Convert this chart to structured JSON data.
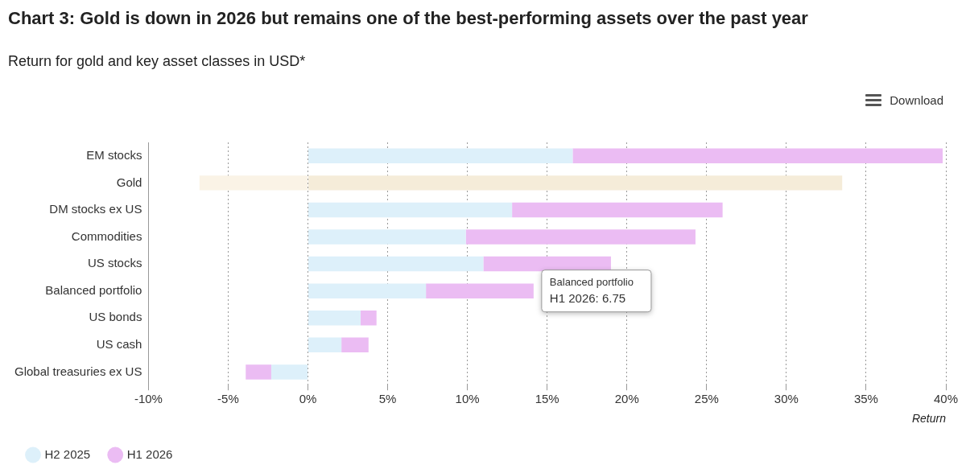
{
  "chart_data": {
    "type": "bar",
    "orientation": "horizontal",
    "stacked": true,
    "title": "Chart 3: Gold is down in 2026 but remains one of the best-performing assets over the past year",
    "subtitle": "Return for gold and key asset classes in USD*",
    "xlabel": "Return",
    "categories": [
      "EM stocks",
      "Gold",
      "DM stocks ex US",
      "Commodities",
      "US stocks",
      "Balanced portfolio",
      "US bonds",
      "US cash",
      "Global treasuries ex US"
    ],
    "series": [
      {
        "name": "H2 2025",
        "color": "#ddf0fa",
        "colors": [
          "#ddf0fa",
          "#f5ecd9",
          "#ddf0fa",
          "#ddf0fa",
          "#ddf0fa",
          "#ddf0fa",
          "#ddf0fa",
          "#ddf0fa",
          "#ddf0fa"
        ],
        "values": [
          16.6,
          33.5,
          12.8,
          9.9,
          11.0,
          7.4,
          3.3,
          2.1,
          -2.3
        ]
      },
      {
        "name": "H1 2026",
        "color": "#ebbcf3",
        "colors": [
          "#ebbcf3",
          "#faf3e6",
          "#ebbcf3",
          "#ebbcf3",
          "#ebbcf3",
          "#ebbcf3",
          "#ebbcf3",
          "#ebbcf3",
          "#ebbcf3"
        ],
        "values": [
          23.2,
          -6.8,
          13.2,
          14.4,
          8.0,
          6.75,
          1.0,
          1.7,
          -1.6
        ]
      }
    ],
    "xlim": [
      -10,
      40
    ],
    "xticks": [
      {
        "value": -10,
        "label": "-10%"
      },
      {
        "value": -5,
        "label": "-5%"
      },
      {
        "value": 0,
        "label": "0%"
      },
      {
        "value": 5,
        "label": "5%"
      },
      {
        "value": 10,
        "label": "10%"
      },
      {
        "value": 15,
        "label": "15%"
      },
      {
        "value": 20,
        "label": "20%"
      },
      {
        "value": 25,
        "label": "25%"
      },
      {
        "value": 30,
        "label": "30%"
      },
      {
        "value": 35,
        "label": "35%"
      },
      {
        "value": 40,
        "label": "40%"
      }
    ],
    "grid": "x",
    "legend": "bottom left",
    "annotations": [
      {
        "text": "Balanced portfolio\nH1 2026: 6.75",
        "x": 14.15,
        "y": "Balanced portfolio"
      },
      "Download"
    ]
  }
}
